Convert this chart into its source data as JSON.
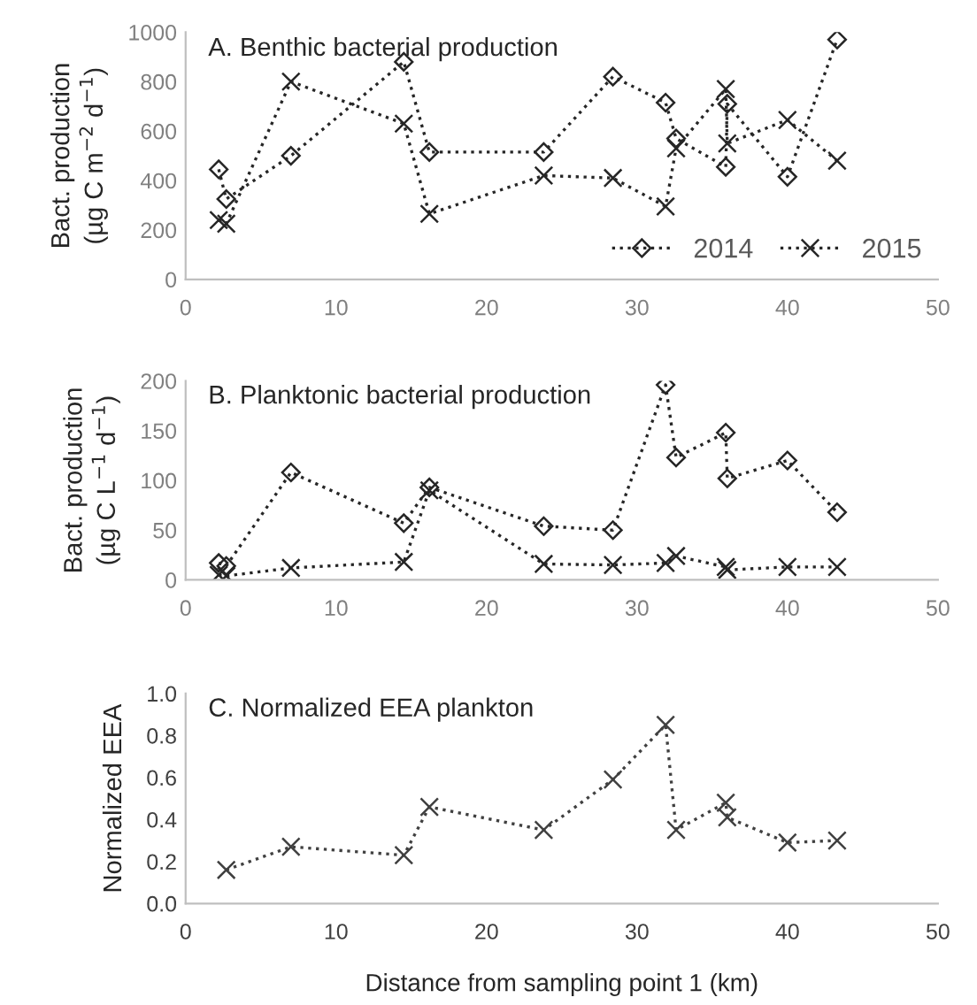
{
  "chart_data": [
    {
      "type": "line",
      "title": "A. Benthic bacterial production",
      "ylabel": "Bact. production\n(µg C m$^{−2}$ d$^{−1}$)",
      "xlim": [
        0,
        50
      ],
      "xticks": [
        0,
        10,
        20,
        30,
        40,
        50
      ],
      "ylim": [
        0,
        1000
      ],
      "yticks": [
        0,
        200,
        400,
        600,
        800,
        1000
      ],
      "grid": false,
      "legend": "bottom right",
      "line_style": "dotted",
      "series": [
        {
          "name": "2014",
          "color": "#262626",
          "marker": "diamond",
          "x": [
            2.2,
            2.7,
            7,
            14.5,
            16.2,
            23.8,
            28.4,
            31.9,
            32.6,
            35.9,
            36,
            40,
            43.3
          ],
          "values": [
            445,
            325,
            500,
            880,
            515,
            515,
            820,
            715,
            570,
            455,
            710,
            415,
            970
          ]
        },
        {
          "name": "2015",
          "color": "#262626",
          "marker": "cross",
          "x": [
            2.2,
            2.7,
            7,
            14.5,
            16.2,
            23.8,
            28.4,
            31.9,
            32.6,
            35.9,
            36,
            40,
            43.3
          ],
          "values": [
            240,
            225,
            800,
            630,
            265,
            420,
            410,
            295,
            530,
            770,
            550,
            645,
            480
          ]
        }
      ]
    },
    {
      "type": "line",
      "title": "B. Planktonic bacterial production",
      "ylabel": "Bact. production\n(µg C L$^{−1}$ d$^{−1}$)",
      "xlim": [
        0,
        50
      ],
      "xticks": [
        0,
        10,
        20,
        30,
        40,
        50
      ],
      "ylim": [
        0,
        200
      ],
      "yticks": [
        0,
        50,
        100,
        150,
        200
      ],
      "grid": false,
      "line_style": "dotted",
      "series": [
        {
          "color": "#262626",
          "marker": "diamond",
          "x": [
            2.2,
            2.7,
            7,
            14.5,
            16.2,
            23.8,
            28.4,
            31.9,
            32.6,
            35.9,
            36,
            40,
            43.3
          ],
          "values": [
            17,
            14,
            108,
            57,
            93,
            54,
            50,
            196,
            123,
            148,
            102,
            120,
            68
          ]
        },
        {
          "color": "#262626",
          "marker": "cross",
          "x": [
            2.2,
            2.7,
            7,
            14.5,
            16.2,
            23.8,
            28.4,
            31.9,
            32.6,
            35.9,
            36,
            40,
            43.3
          ],
          "values": [
            5,
            4,
            12,
            18,
            90,
            16,
            15,
            17,
            24,
            13,
            10,
            13,
            13
          ]
        }
      ]
    },
    {
      "type": "line",
      "title": "C. Normalized EEA plankton",
      "xlabel": "Distance from sampling point 1 (km)",
      "ylabel": "Normalized EEA",
      "xlim": [
        0,
        50
      ],
      "xticks": [
        0,
        10,
        20,
        30,
        40,
        50
      ],
      "ylim": [
        0,
        1
      ],
      "yticks": [
        {
          "value": 0,
          "label": "0.0"
        },
        {
          "value": 0.2,
          "label": "0.2"
        },
        {
          "value": 0.4,
          "label": "0.4"
        },
        {
          "value": 0.6,
          "label": "0.6"
        },
        {
          "value": 0.8,
          "label": "0.8"
        },
        {
          "value": 1,
          "label": "1.0"
        }
      ],
      "grid": false,
      "line_style": "dotted",
      "series": [
        {
          "color": "#404040",
          "marker": "cross",
          "x": [
            2.7,
            7,
            14.5,
            16.2,
            23.8,
            28.4,
            31.9,
            32.6,
            35.9,
            36,
            40,
            43.3
          ],
          "values": [
            0.16,
            0.27,
            0.23,
            0.46,
            0.35,
            0.59,
            0.85,
            0.35,
            0.48,
            0.41,
            0.29,
            0.3
          ]
        }
      ]
    }
  ]
}
